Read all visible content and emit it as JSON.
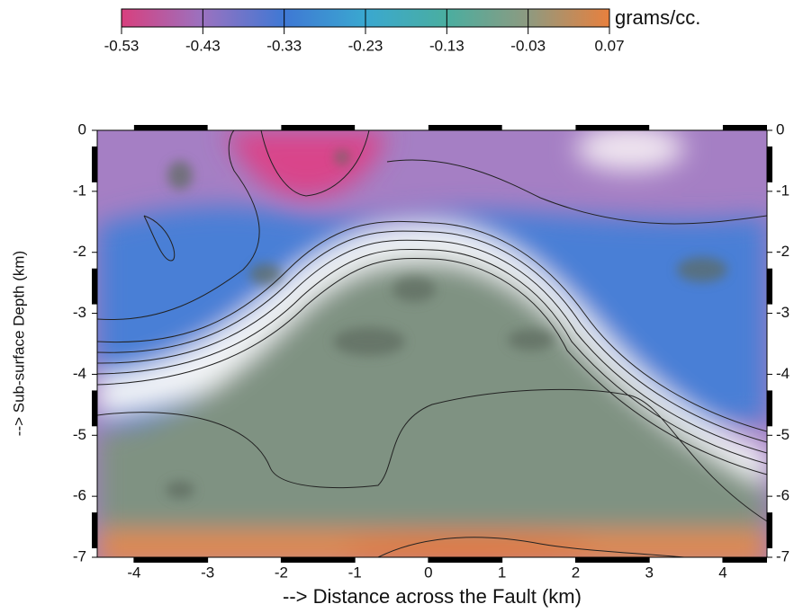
{
  "chart_data": {
    "type": "contour",
    "xlabel": "--> Distance across the Fault (km)",
    "ylabel": "--> Sub-surface Depth (km)",
    "xlim": [
      -4.5,
      4.6
    ],
    "ylim": [
      -7,
      0
    ],
    "xticks": [
      -4,
      -3,
      -2,
      -1,
      0,
      1,
      2,
      3,
      4
    ],
    "yticks": [
      0,
      -1,
      -2,
      -3,
      -4,
      -5,
      -6,
      -7
    ],
    "colorbar": {
      "label": "grams/cc.",
      "ticks": [
        -0.53,
        -0.43,
        -0.33,
        -0.23,
        -0.13,
        -0.03,
        0.07
      ],
      "colors": [
        "#d8407e",
        "#9a72c0",
        "#3f78d4",
        "#3aa8d0",
        "#4aaea0",
        "#8e9a80",
        "#e8803e"
      ]
    }
  }
}
